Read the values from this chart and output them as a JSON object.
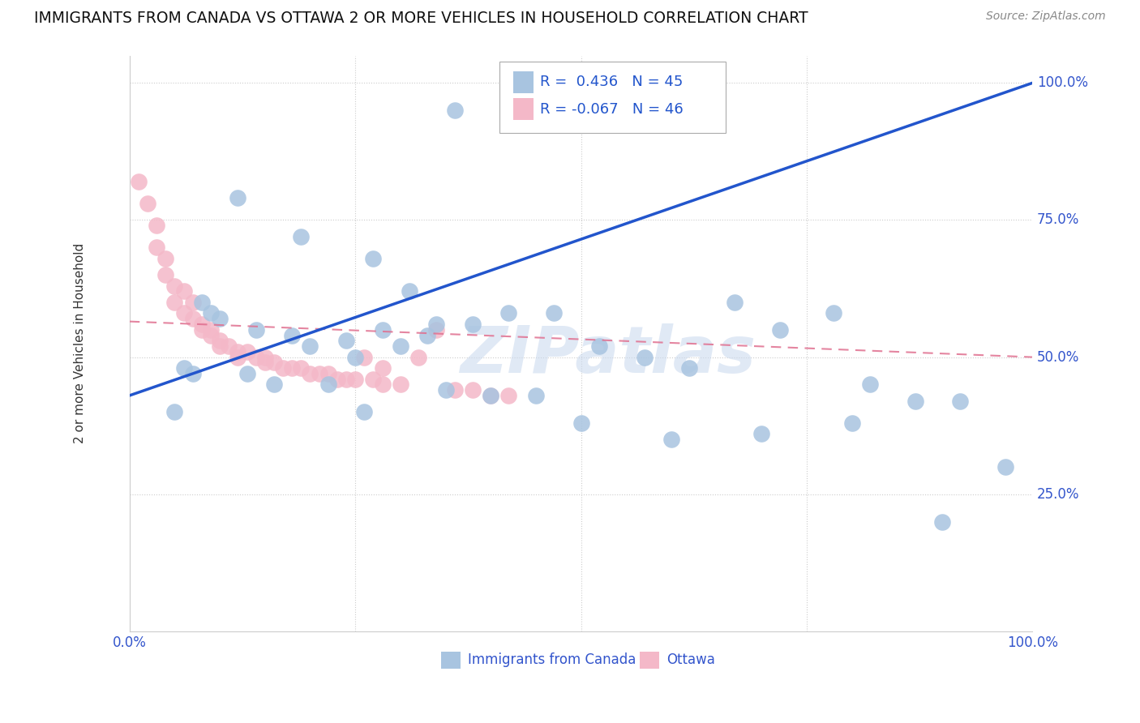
{
  "title": "IMMIGRANTS FROM CANADA VS OTTAWA 2 OR MORE VEHICLES IN HOUSEHOLD CORRELATION CHART",
  "source": "Source: ZipAtlas.com",
  "ylabel": "2 or more Vehicles in Household",
  "legend_label1": "Immigrants from Canada",
  "legend_label2": "Ottawa",
  "r1": 0.436,
  "n1": 45,
  "r2": -0.067,
  "n2": 46,
  "xlim": [
    0.0,
    1.0
  ],
  "ylim": [
    0.0,
    1.05
  ],
  "ytick_vals": [
    0.25,
    0.5,
    0.75,
    1.0
  ],
  "ytick_labels": [
    "25.0%",
    "50.0%",
    "75.0%",
    "100.0%"
  ],
  "color_blue": "#a8c4e0",
  "color_pink": "#f4b8c8",
  "line_blue": "#2255cc",
  "line_pink": "#e07090",
  "watermark": "ZIPatlas",
  "blue_line_x0": 0.0,
  "blue_line_y0": 0.43,
  "blue_line_x1": 1.0,
  "blue_line_y1": 1.0,
  "pink_line_x0": 0.0,
  "pink_line_y0": 0.565,
  "pink_line_x1": 1.0,
  "pink_line_y1": 0.5,
  "blue_pts_x": [
    0.36,
    0.12,
    0.19,
    0.27,
    0.31,
    0.08,
    0.09,
    0.1,
    0.14,
    0.18,
    0.24,
    0.3,
    0.34,
    0.2,
    0.25,
    0.06,
    0.07,
    0.13,
    0.16,
    0.22,
    0.28,
    0.33,
    0.38,
    0.42,
    0.47,
    0.52,
    0.57,
    0.62,
    0.67,
    0.72,
    0.78,
    0.82,
    0.87,
    0.92,
    0.97,
    0.05,
    0.26,
    0.4,
    0.5,
    0.6,
    0.7,
    0.8,
    0.9,
    0.35,
    0.45
  ],
  "blue_pts_y": [
    0.95,
    0.79,
    0.72,
    0.68,
    0.62,
    0.6,
    0.58,
    0.57,
    0.55,
    0.54,
    0.53,
    0.52,
    0.56,
    0.52,
    0.5,
    0.48,
    0.47,
    0.47,
    0.45,
    0.45,
    0.55,
    0.54,
    0.56,
    0.58,
    0.58,
    0.52,
    0.5,
    0.48,
    0.6,
    0.55,
    0.58,
    0.45,
    0.42,
    0.42,
    0.3,
    0.4,
    0.4,
    0.43,
    0.38,
    0.35,
    0.36,
    0.38,
    0.2,
    0.44,
    0.43
  ],
  "pink_pts_x": [
    0.01,
    0.02,
    0.03,
    0.03,
    0.04,
    0.04,
    0.05,
    0.05,
    0.06,
    0.06,
    0.07,
    0.07,
    0.08,
    0.08,
    0.09,
    0.09,
    0.1,
    0.1,
    0.11,
    0.12,
    0.12,
    0.13,
    0.14,
    0.15,
    0.15,
    0.16,
    0.17,
    0.18,
    0.19,
    0.2,
    0.21,
    0.22,
    0.23,
    0.24,
    0.25,
    0.26,
    0.27,
    0.28,
    0.3,
    0.32,
    0.34,
    0.36,
    0.38,
    0.4,
    0.42,
    0.28
  ],
  "pink_pts_y": [
    0.82,
    0.78,
    0.74,
    0.7,
    0.68,
    0.65,
    0.63,
    0.6,
    0.62,
    0.58,
    0.6,
    0.57,
    0.56,
    0.55,
    0.55,
    0.54,
    0.53,
    0.52,
    0.52,
    0.51,
    0.5,
    0.51,
    0.5,
    0.5,
    0.49,
    0.49,
    0.48,
    0.48,
    0.48,
    0.47,
    0.47,
    0.47,
    0.46,
    0.46,
    0.46,
    0.5,
    0.46,
    0.45,
    0.45,
    0.5,
    0.55,
    0.44,
    0.44,
    0.43,
    0.43,
    0.48
  ]
}
